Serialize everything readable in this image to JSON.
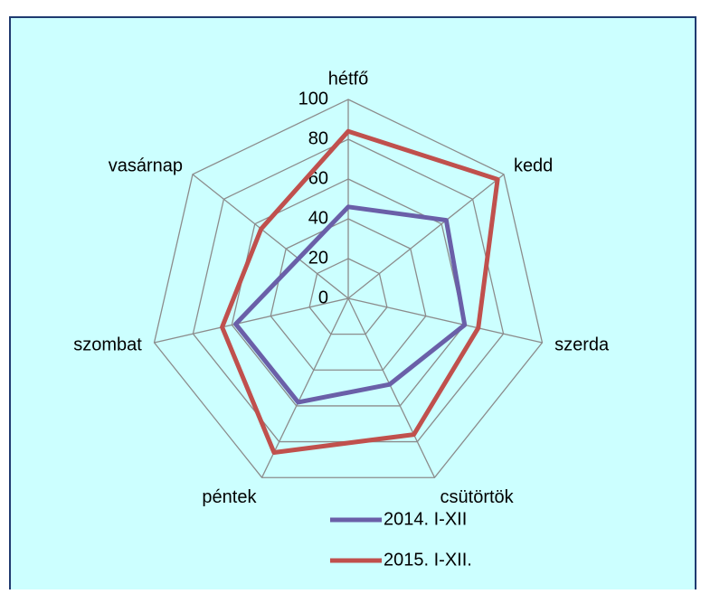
{
  "chart_data": {
    "type": "radar",
    "categories": [
      "hétfő",
      "kedd",
      "szerda",
      "csütörtök",
      "péntek",
      "szombat",
      "vasárnap"
    ],
    "series": [
      {
        "name": "2014. I-XII",
        "color": "#6a5fa8",
        "values": [
          46,
          63,
          60,
          48,
          58,
          58,
          32
        ]
      },
      {
        "name": "2015. I-XII.",
        "color": "#c0504d",
        "values": [
          84,
          96,
          67,
          76,
          86,
          65,
          56
        ]
      }
    ],
    "ylim": [
      0,
      100
    ],
    "yticks": [
      0,
      20,
      40,
      60,
      80,
      100
    ],
    "grid": true
  }
}
